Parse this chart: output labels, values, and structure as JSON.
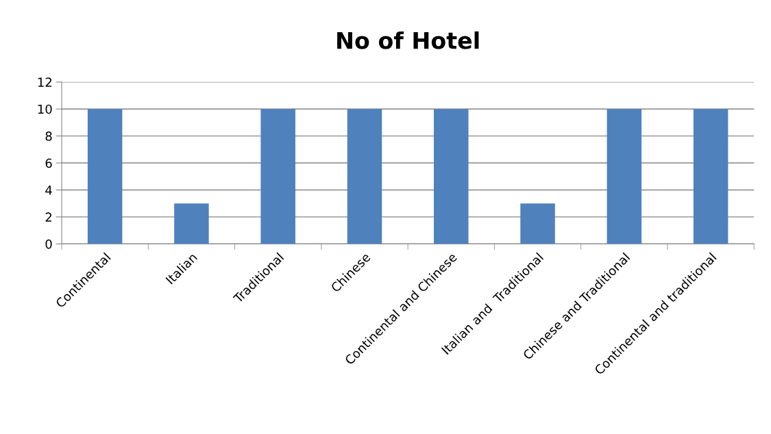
{
  "chart_data": {
    "type": "bar",
    "title": "No of Hotel",
    "categories": [
      "Continental",
      "Italian",
      "Traditional",
      "Chinese",
      "Continental and Chinese",
      "Italian and  Traditional",
      "Chinese and Traditional",
      "Continental and traditional"
    ],
    "values": [
      10,
      3,
      10,
      10,
      10,
      3,
      10,
      10
    ],
    "color": "#4f81bd",
    "ylim": [
      0,
      12
    ],
    "yticks": [
      0,
      2,
      4,
      6,
      8,
      10,
      12
    ],
    "grid": "y",
    "legend": false
  }
}
